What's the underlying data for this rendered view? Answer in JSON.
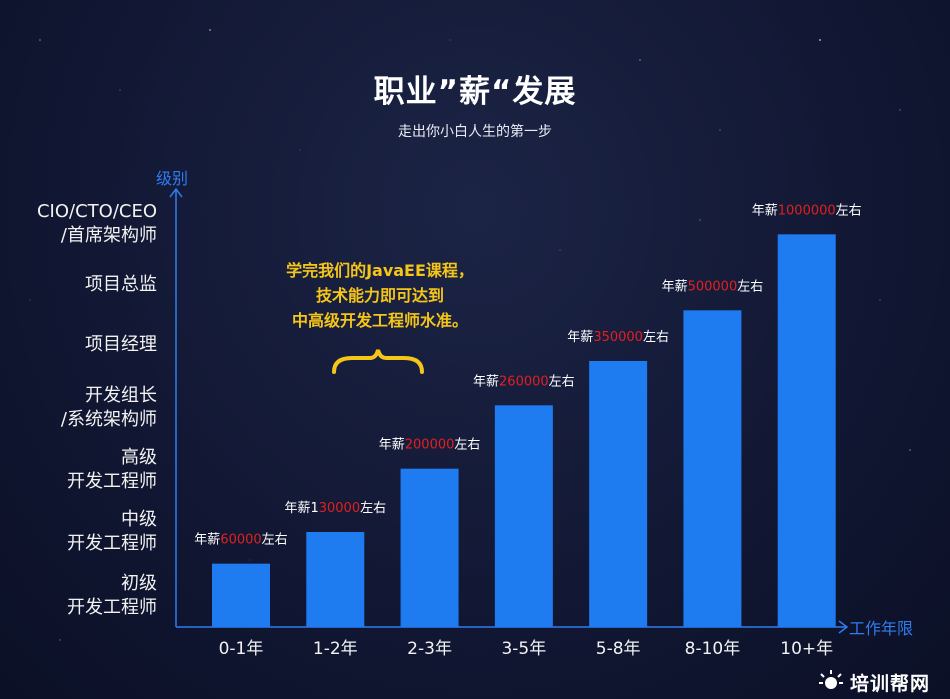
{
  "header": {
    "title": "职业”薪“发展",
    "subtitle": "走出你小白人生的第一步"
  },
  "callout": {
    "line1": "学完我们的JavaEE课程，",
    "line2": "技术能力即可达到",
    "line3": "中高级开发工程师水准。"
  },
  "brand": {
    "name": "培训帮网"
  },
  "colors": {
    "bar": "#1e7bf0",
    "axis": "#2f7cf0",
    "highlight": "#e02020",
    "callout": "#f5c518"
  },
  "chart_data": {
    "type": "bar",
    "xlabel": "工作年限",
    "ylabel": "级别",
    "categories": [
      "0-1年",
      "1-2年",
      "2-3年",
      "3-5年",
      "5-8年",
      "8-10年",
      "10+年"
    ],
    "values": [
      1.0,
      1.5,
      2.5,
      3.5,
      4.2,
      5.0,
      6.2
    ],
    "ylim": [
      0,
      6.9
    ],
    "y_levels": [
      {
        "line1": "初级",
        "line2": "开发工程师"
      },
      {
        "line1": "中级",
        "line2": "开发工程师"
      },
      {
        "line1": "高级",
        "line2": "开发工程师"
      },
      {
        "line1": "开发组长",
        "line2": "/系统架构师"
      },
      {
        "line1": "项目经理",
        "line2": ""
      },
      {
        "line1": "项目总监",
        "line2": ""
      },
      {
        "line1": "CIO/CTO/CEO",
        "line2": "/首席架构师"
      }
    ],
    "data_labels": [
      {
        "prefix": "年薪",
        "amount": "60000",
        "suffix": "左右"
      },
      {
        "prefix": "年薪1",
        "amount": "30000",
        "suffix": "左右"
      },
      {
        "prefix": "年薪",
        "amount": "200000",
        "suffix": "左右"
      },
      {
        "prefix": "年薪",
        "amount": "260000",
        "suffix": "左右"
      },
      {
        "prefix": "年薪",
        "amount": "350000",
        "suffix": "左右"
      },
      {
        "prefix": "年薪",
        "amount": "500000",
        "suffix": "左右"
      },
      {
        "prefix": "年薪",
        "amount": "1000000",
        "suffix": "左右"
      }
    ],
    "grid": false,
    "legend": "none"
  }
}
